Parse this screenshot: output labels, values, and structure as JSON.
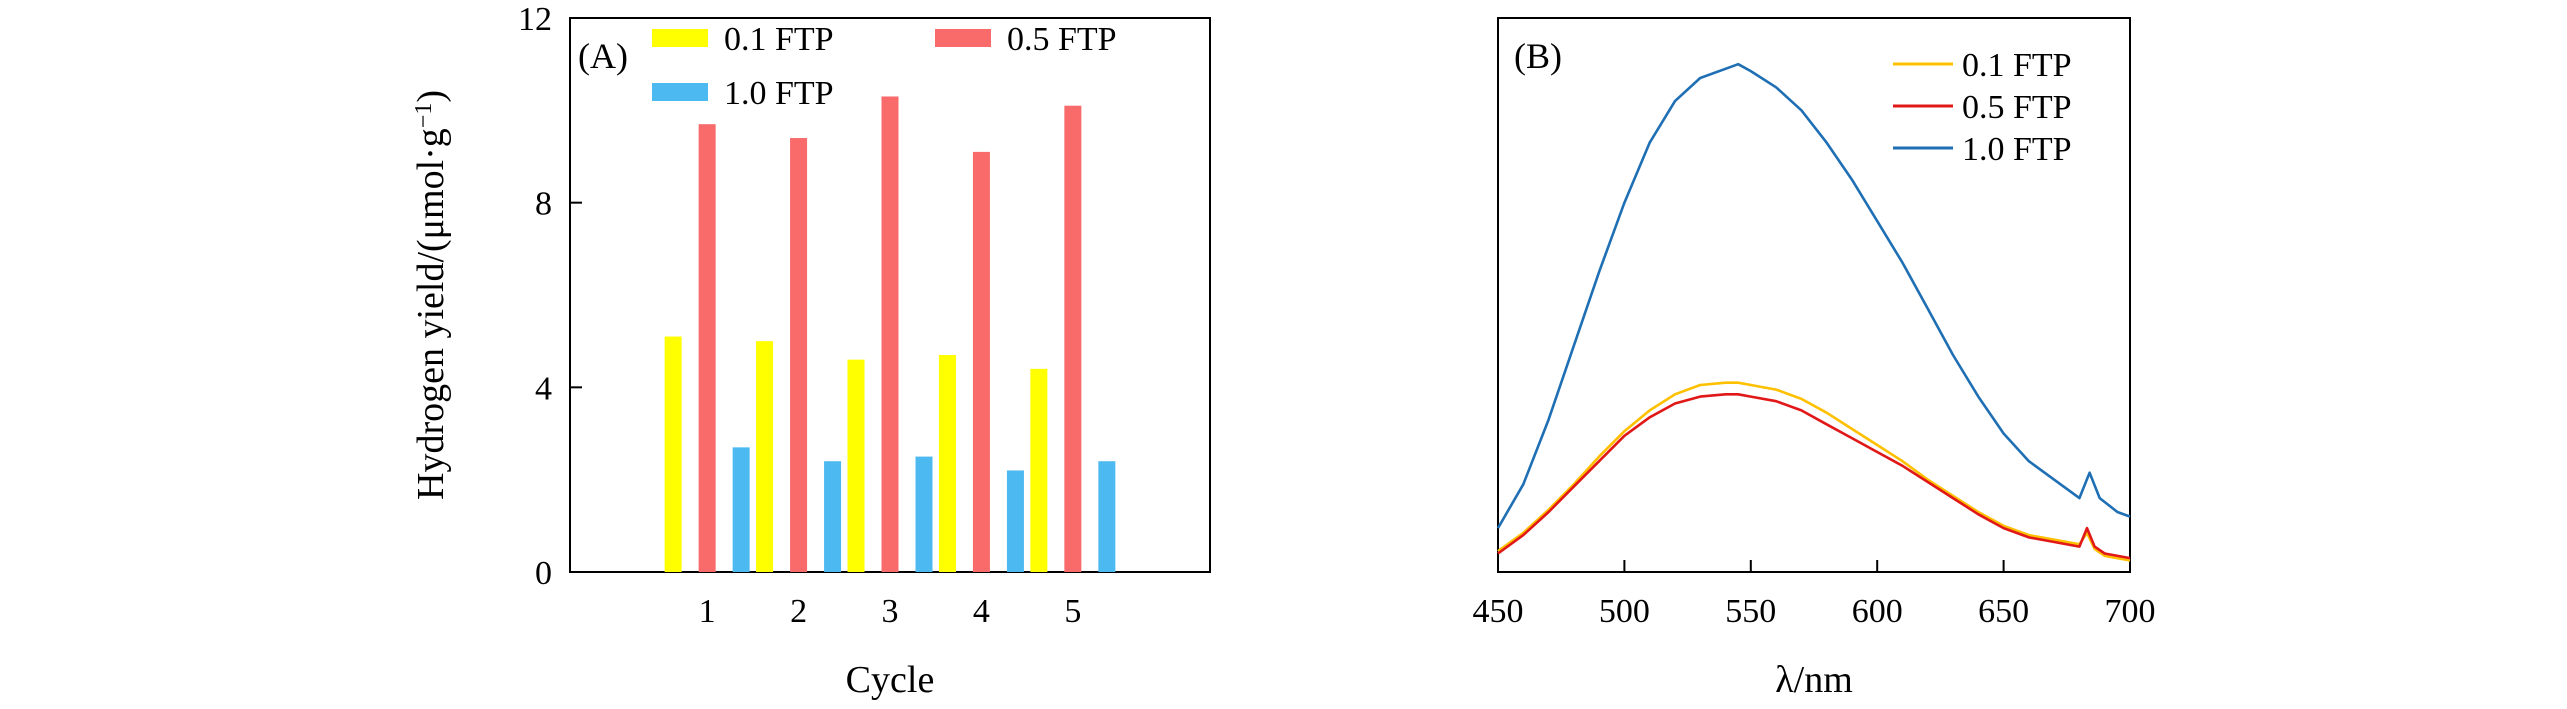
{
  "chart_data": [
    {
      "type": "bar",
      "panel_label": "(A)",
      "categories": [
        "1",
        "2",
        "3",
        "4",
        "5"
      ],
      "xlabel": "Cycle",
      "ylabel": "Hydrogen yield/(μmol·g",
      "ylabel_sup": "−1",
      "ylabel_end": ")",
      "ylim": [
        0,
        12
      ],
      "yticks": [
        "0",
        "4",
        "8",
        "12"
      ],
      "legend_position": "top",
      "series": [
        {
          "name": "0.1 FTP",
          "color": "#ffff00",
          "values": [
            5.1,
            5.0,
            4.6,
            4.7,
            4.4
          ]
        },
        {
          "name": "0.5 FTP",
          "color": "#f96a6a",
          "values": [
            9.7,
            9.4,
            10.3,
            9.1,
            10.1
          ]
        },
        {
          "name": "1.0 FTP",
          "color": "#4cbaf0",
          "values": [
            2.7,
            2.4,
            2.5,
            2.2,
            2.4
          ]
        }
      ]
    },
    {
      "type": "line",
      "panel_label": "(B)",
      "xlabel": "λ/nm",
      "xlim": [
        450,
        700
      ],
      "xticks": [
        "450",
        "500",
        "550",
        "600",
        "650",
        "700"
      ],
      "ylim": [
        0,
        12
      ],
      "legend_position": "top-right",
      "series": [
        {
          "name": "0.1 FTP",
          "color": "#ffc000",
          "x": [
            450,
            460,
            470,
            480,
            490,
            500,
            510,
            520,
            530,
            540,
            545,
            550,
            560,
            570,
            580,
            590,
            600,
            610,
            620,
            630,
            640,
            650,
            660,
            670,
            680,
            683,
            686,
            690,
            700
          ],
          "y": [
            0.45,
            0.85,
            1.35,
            1.9,
            2.5,
            3.05,
            3.5,
            3.85,
            4.05,
            4.1,
            4.1,
            4.05,
            3.95,
            3.75,
            3.45,
            3.1,
            2.75,
            2.4,
            2.0,
            1.65,
            1.3,
            1.0,
            0.8,
            0.7,
            0.6,
            0.85,
            0.5,
            0.35,
            0.25
          ]
        },
        {
          "name": "0.5 FTP",
          "color": "#e01818",
          "x": [
            450,
            460,
            470,
            480,
            490,
            500,
            510,
            520,
            530,
            540,
            545,
            550,
            560,
            570,
            580,
            590,
            600,
            610,
            620,
            630,
            640,
            650,
            660,
            670,
            680,
            683,
            686,
            690,
            700
          ],
          "y": [
            0.4,
            0.8,
            1.3,
            1.85,
            2.4,
            2.95,
            3.35,
            3.65,
            3.8,
            3.85,
            3.85,
            3.8,
            3.7,
            3.5,
            3.2,
            2.9,
            2.6,
            2.3,
            1.95,
            1.6,
            1.25,
            0.95,
            0.75,
            0.65,
            0.55,
            0.95,
            0.55,
            0.4,
            0.3
          ]
        },
        {
          "name": "1.0 FTP",
          "color": "#1f6fb4",
          "x": [
            450,
            460,
            470,
            480,
            490,
            500,
            510,
            520,
            530,
            540,
            545,
            550,
            560,
            570,
            580,
            590,
            600,
            610,
            620,
            630,
            640,
            650,
            660,
            670,
            680,
            684,
            688,
            695,
            700
          ],
          "y": [
            0.95,
            1.9,
            3.3,
            4.9,
            6.5,
            8.0,
            9.3,
            10.2,
            10.7,
            10.9,
            11.0,
            10.85,
            10.5,
            10.0,
            9.3,
            8.5,
            7.6,
            6.7,
            5.7,
            4.7,
            3.8,
            3.0,
            2.4,
            2.0,
            1.6,
            2.15,
            1.6,
            1.3,
            1.2
          ]
        }
      ]
    }
  ]
}
